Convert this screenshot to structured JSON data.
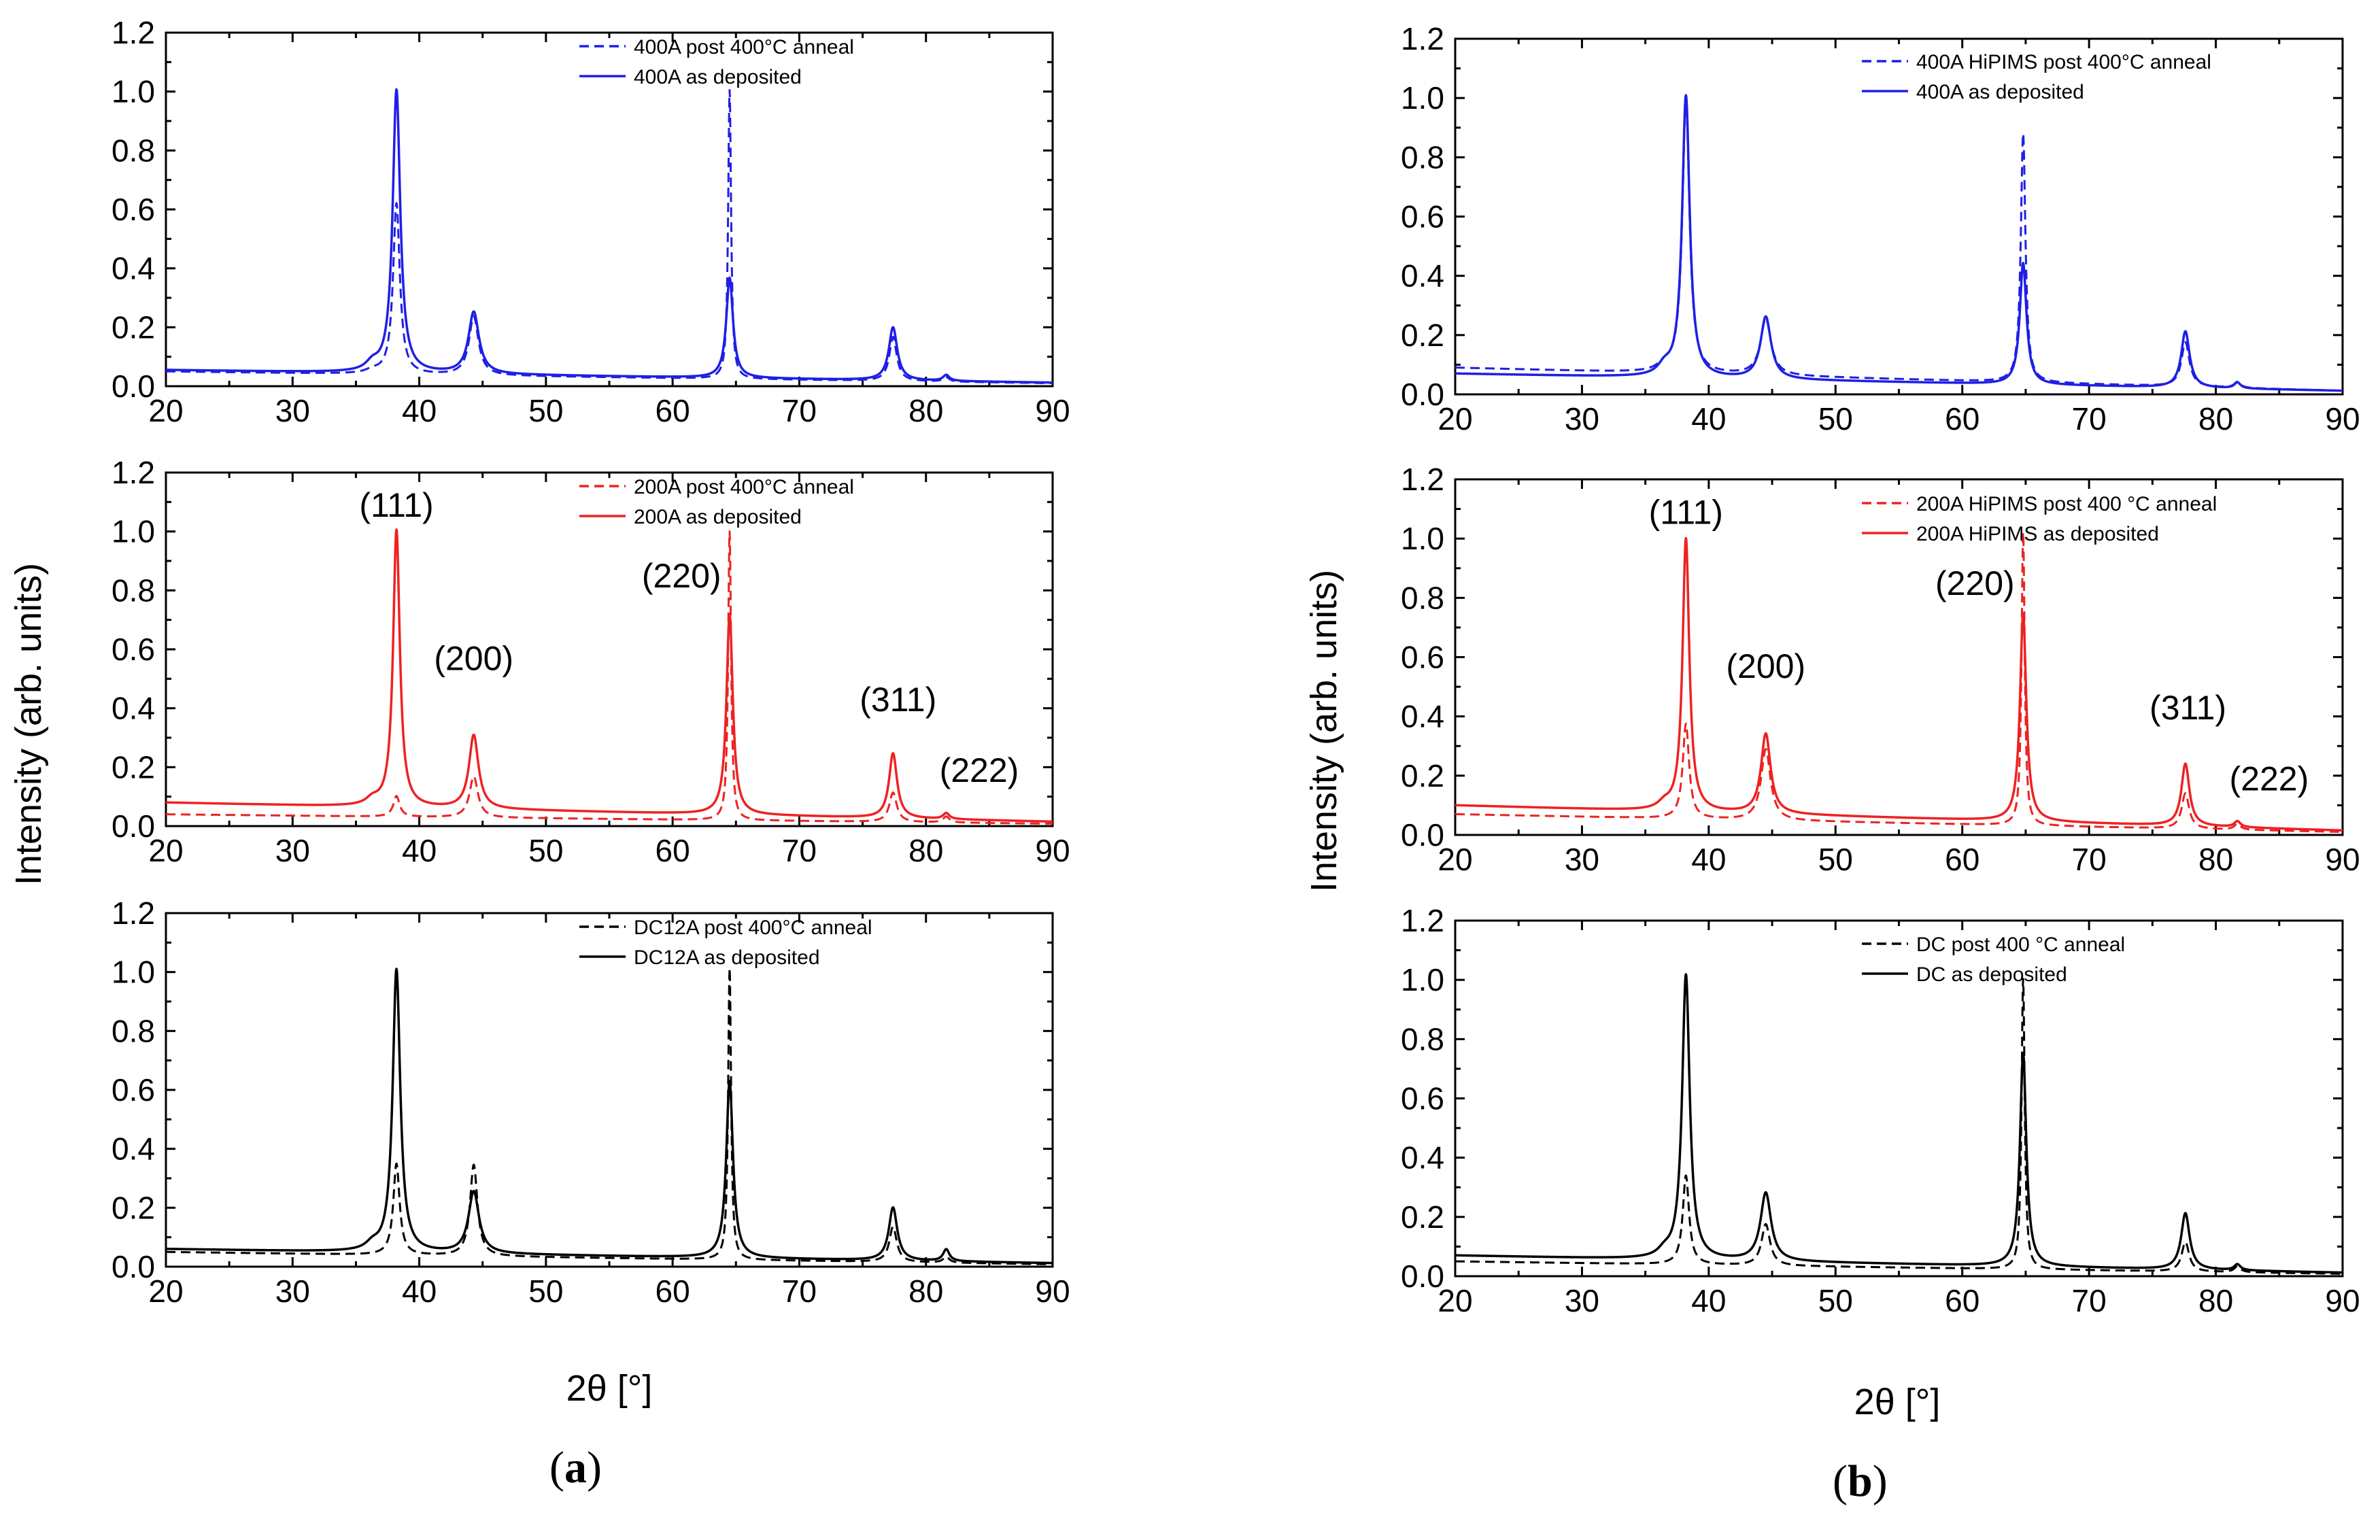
{
  "figure": {
    "ylabel": "Intensity (arb. units)",
    "xlabel": "2θ [°]",
    "panel_labels": [
      {
        "open": "(",
        "letter": "a",
        "close": ")"
      },
      {
        "open": "(",
        "letter": "b",
        "close": ")"
      }
    ]
  },
  "colors": {
    "blue": "#1f1fe6",
    "red": "#ee2222",
    "black": "#000000"
  },
  "chart_data": [
    {
      "type": "line",
      "panel": "a",
      "row": 0,
      "color": "blue",
      "xlim": [
        20,
        90
      ],
      "ylim": [
        0,
        1.2
      ],
      "xticks": [
        20,
        30,
        40,
        50,
        60,
        70,
        80,
        90
      ],
      "yticks": [
        0.0,
        0.2,
        0.4,
        0.6,
        0.8,
        1.0,
        1.2
      ],
      "series": [
        {
          "name": "400A post 400°C anneal",
          "dash": true,
          "baseline": [
            [
              20,
              0.05
            ],
            [
              90,
              0.01
            ]
          ],
          "peaks": [
            [
              36.3,
              0.01,
              0.6
            ],
            [
              38.2,
              0.58,
              0.32
            ],
            [
              44.3,
              0.2,
              0.45
            ],
            [
              64.5,
              0.98,
              0.14
            ],
            [
              77.4,
              0.15,
              0.35
            ],
            [
              81.6,
              0.015,
              0.3
            ]
          ]
        },
        {
          "name": "400A as deposited",
          "dash": false,
          "baseline": [
            [
              20,
              0.055
            ],
            [
              90,
              0.012
            ]
          ],
          "peaks": [
            [
              36.3,
              0.025,
              0.6
            ],
            [
              38.2,
              0.96,
              0.36
            ],
            [
              44.3,
              0.21,
              0.5
            ],
            [
              64.5,
              0.34,
              0.32
            ],
            [
              77.4,
              0.18,
              0.4
            ],
            [
              81.6,
              0.02,
              0.3
            ]
          ]
        }
      ],
      "peak_labels": []
    },
    {
      "type": "line",
      "panel": "a",
      "row": 1,
      "color": "red",
      "xlim": [
        20,
        90
      ],
      "ylim": [
        0,
        1.2
      ],
      "xticks": [
        20,
        30,
        40,
        50,
        60,
        70,
        80,
        90
      ],
      "yticks": [
        0.0,
        0.2,
        0.4,
        0.6,
        0.8,
        1.0,
        1.2
      ],
      "series": [
        {
          "name": "200A post 400°C anneal",
          "dash": true,
          "baseline": [
            [
              20,
              0.04
            ],
            [
              90,
              0.008
            ]
          ],
          "peaks": [
            [
              38.2,
              0.07,
              0.3
            ],
            [
              44.3,
              0.14,
              0.4
            ],
            [
              64.5,
              0.98,
              0.14
            ],
            [
              77.4,
              0.1,
              0.35
            ],
            [
              81.6,
              0.02,
              0.3
            ]
          ]
        },
        {
          "name": "200A as deposited",
          "dash": false,
          "baseline": [
            [
              20,
              0.08
            ],
            [
              90,
              0.015
            ]
          ],
          "peaks": [
            [
              36.3,
              0.02,
              0.6
            ],
            [
              38.2,
              0.94,
              0.32
            ],
            [
              44.3,
              0.25,
              0.45
            ],
            [
              64.5,
              0.68,
              0.3
            ],
            [
              77.4,
              0.22,
              0.38
            ],
            [
              81.6,
              0.02,
              0.3
            ]
          ]
        }
      ],
      "peak_labels": [
        {
          "text": "(111)",
          "x": 38.2,
          "y": 1.05
        },
        {
          "text": "(200)",
          "x": 44.3,
          "y": 0.53
        },
        {
          "text": "(220)",
          "x": 60.7,
          "y": 0.81
        },
        {
          "text": "(311)",
          "x": 77.8,
          "y": 0.39
        },
        {
          "text": "(222)",
          "x": 84.2,
          "y": 0.15
        }
      ]
    },
    {
      "type": "line",
      "panel": "a",
      "row": 2,
      "color": "black",
      "xlim": [
        20,
        90
      ],
      "ylim": [
        0,
        1.2
      ],
      "xticks": [
        20,
        30,
        40,
        50,
        60,
        70,
        80,
        90
      ],
      "yticks": [
        0.0,
        0.2,
        0.4,
        0.6,
        0.8,
        1.0,
        1.2
      ],
      "series": [
        {
          "name": "DC12A post 400°C anneal",
          "dash": true,
          "baseline": [
            [
              20,
              0.05
            ],
            [
              90,
              0.008
            ]
          ],
          "peaks": [
            [
              38.2,
              0.31,
              0.3
            ],
            [
              44.3,
              0.31,
              0.35
            ],
            [
              64.5,
              0.99,
              0.14
            ],
            [
              77.4,
              0.12,
              0.35
            ],
            [
              81.6,
              0.02,
              0.3
            ]
          ]
        },
        {
          "name": "DC12A as deposited",
          "dash": false,
          "baseline": [
            [
              20,
              0.06
            ],
            [
              90,
              0.012
            ]
          ],
          "peaks": [
            [
              36.3,
              0.02,
              0.6
            ],
            [
              38.2,
              0.96,
              0.36
            ],
            [
              44.3,
              0.21,
              0.5
            ],
            [
              64.5,
              0.6,
              0.32
            ],
            [
              77.4,
              0.18,
              0.4
            ],
            [
              81.6,
              0.04,
              0.3
            ]
          ]
        }
      ],
      "peak_labels": []
    },
    {
      "type": "line",
      "panel": "b",
      "row": 0,
      "color": "blue",
      "xlim": [
        20,
        90
      ],
      "ylim": [
        0,
        1.2
      ],
      "xticks": [
        20,
        30,
        40,
        50,
        60,
        70,
        80,
        90
      ],
      "yticks": [
        0.0,
        0.2,
        0.4,
        0.6,
        0.8,
        1.0,
        1.2
      ],
      "series": [
        {
          "name": "400A HiPIMS post 400°C anneal",
          "dash": true,
          "baseline": [
            [
              20,
              0.09
            ],
            [
              90,
              0.012
            ]
          ],
          "peaks": [
            [
              36.5,
              0.02,
              0.6
            ],
            [
              38.2,
              0.92,
              0.34
            ],
            [
              44.5,
              0.19,
              0.5
            ],
            [
              64.8,
              0.84,
              0.22
            ],
            [
              77.6,
              0.15,
              0.38
            ],
            [
              81.7,
              0.02,
              0.3
            ]
          ]
        },
        {
          "name": "400A as deposited",
          "dash": false,
          "baseline": [
            [
              20,
              0.07
            ],
            [
              90,
              0.012
            ]
          ],
          "peaks": [
            [
              36.5,
              0.03,
              0.6
            ],
            [
              38.2,
              0.95,
              0.36
            ],
            [
              44.5,
              0.21,
              0.5
            ],
            [
              64.8,
              0.41,
              0.32
            ],
            [
              77.6,
              0.19,
              0.4
            ],
            [
              81.7,
              0.02,
              0.3
            ]
          ]
        }
      ],
      "peak_labels": []
    },
    {
      "type": "line",
      "panel": "b",
      "row": 1,
      "color": "red",
      "xlim": [
        20,
        90
      ],
      "ylim": [
        0,
        1.2
      ],
      "xticks": [
        20,
        30,
        40,
        50,
        60,
        70,
        80,
        90
      ],
      "yticks": [
        0.0,
        0.2,
        0.4,
        0.6,
        0.8,
        1.0,
        1.2
      ],
      "series": [
        {
          "name": "200A HiPIMS post 400 °C anneal",
          "dash": true,
          "baseline": [
            [
              20,
              0.07
            ],
            [
              90,
              0.01
            ]
          ],
          "peaks": [
            [
              38.2,
              0.32,
              0.3
            ],
            [
              44.5,
              0.24,
              0.45
            ],
            [
              64.8,
              0.99,
              0.15
            ],
            [
              77.6,
              0.12,
              0.35
            ],
            [
              81.7,
              0.02,
              0.3
            ]
          ]
        },
        {
          "name": "200A HiPIMS as deposited",
          "dash": false,
          "baseline": [
            [
              20,
              0.1
            ],
            [
              90,
              0.015
            ]
          ],
          "peaks": [
            [
              36.5,
              0.02,
              0.6
            ],
            [
              38.2,
              0.92,
              0.32
            ],
            [
              44.5,
              0.27,
              0.45
            ],
            [
              64.8,
              0.7,
              0.3
            ],
            [
              77.6,
              0.21,
              0.38
            ],
            [
              81.7,
              0.02,
              0.3
            ]
          ]
        }
      ],
      "peak_labels": [
        {
          "text": "(111)",
          "x": 38.2,
          "y": 1.05
        },
        {
          "text": "(200)",
          "x": 44.5,
          "y": 0.53
        },
        {
          "text": "(220)",
          "x": 61.0,
          "y": 0.81
        },
        {
          "text": "(311)",
          "x": 77.8,
          "y": 0.39
        },
        {
          "text": "(222)",
          "x": 84.2,
          "y": 0.15
        }
      ]
    },
    {
      "type": "line",
      "panel": "b",
      "row": 2,
      "color": "black",
      "xlim": [
        20,
        90
      ],
      "ylim": [
        0,
        1.2
      ],
      "xticks": [
        20,
        30,
        40,
        50,
        60,
        70,
        80,
        90
      ],
      "yticks": [
        0.0,
        0.2,
        0.4,
        0.6,
        0.8,
        1.0,
        1.2
      ],
      "series": [
        {
          "name": "DC post 400 °C anneal",
          "dash": true,
          "baseline": [
            [
              20,
              0.05
            ],
            [
              90,
              0.008
            ]
          ],
          "peaks": [
            [
              38.2,
              0.3,
              0.3
            ],
            [
              44.5,
              0.14,
              0.4
            ],
            [
              64.8,
              0.98,
              0.15
            ],
            [
              77.6,
              0.1,
              0.35
            ],
            [
              81.7,
              0.02,
              0.3
            ]
          ]
        },
        {
          "name": "DC as deposited",
          "dash": false,
          "baseline": [
            [
              20,
              0.07
            ],
            [
              90,
              0.012
            ]
          ],
          "peaks": [
            [
              36.5,
              0.02,
              0.6
            ],
            [
              38.2,
              0.96,
              0.36
            ],
            [
              44.5,
              0.23,
              0.5
            ],
            [
              64.8,
              0.72,
              0.3
            ],
            [
              77.6,
              0.19,
              0.4
            ],
            [
              81.7,
              0.02,
              0.3
            ]
          ]
        }
      ],
      "peak_labels": []
    }
  ]
}
